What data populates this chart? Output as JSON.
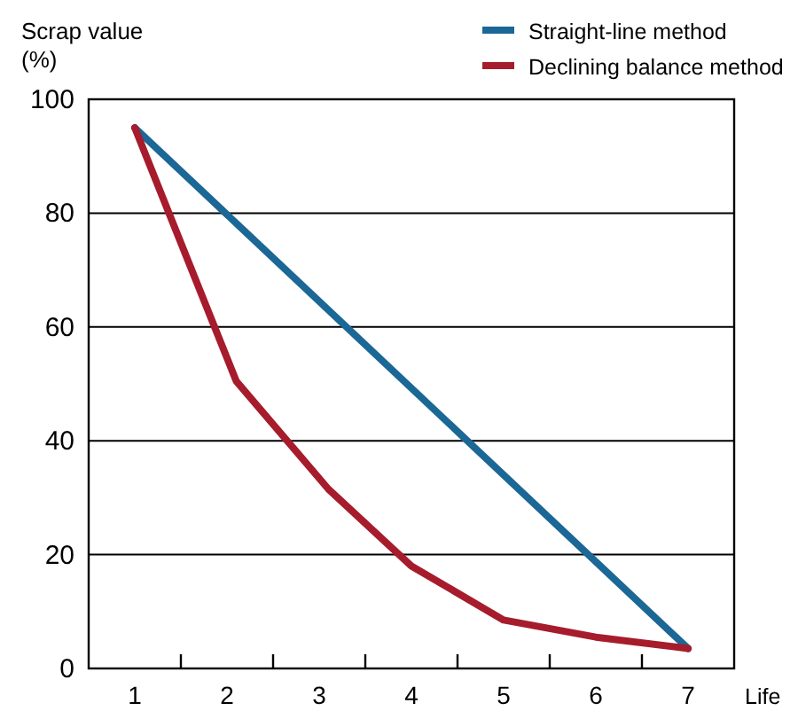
{
  "chart_data": {
    "type": "line",
    "ylabel": "Scrap value\n(%)",
    "xlabel": "Life",
    "series": [
      {
        "name": "Straight-line method",
        "color": "#1b6796",
        "x": [
          1,
          7
        ],
        "values": [
          95,
          3.5
        ]
      },
      {
        "name": "Declining balance method",
        "color": "#a61c2c",
        "x": [
          1,
          2.1,
          3.1,
          4,
          5,
          6,
          7
        ],
        "values": [
          95,
          50.5,
          31.5,
          18,
          8.5,
          5.5,
          3.5
        ]
      }
    ],
    "xlim": [
      0.5,
      7.5
    ],
    "xticks": [
      1,
      {
        "value": 1.5,
        "label": null
      },
      2,
      {
        "value": 2.5,
        "label": null
      },
      3,
      {
        "value": 3.5,
        "label": null
      },
      4,
      {
        "value": 4.5,
        "label": null
      },
      5,
      {
        "value": 5.5,
        "label": null
      },
      6,
      {
        "value": 6.5,
        "label": null
      },
      7
    ],
    "ylim": [
      0,
      100
    ],
    "yticks": [
      0,
      20,
      40,
      60,
      80,
      100
    ],
    "grid": "y",
    "legend": "top right",
    "marker": "none",
    "line_style": "solid"
  }
}
